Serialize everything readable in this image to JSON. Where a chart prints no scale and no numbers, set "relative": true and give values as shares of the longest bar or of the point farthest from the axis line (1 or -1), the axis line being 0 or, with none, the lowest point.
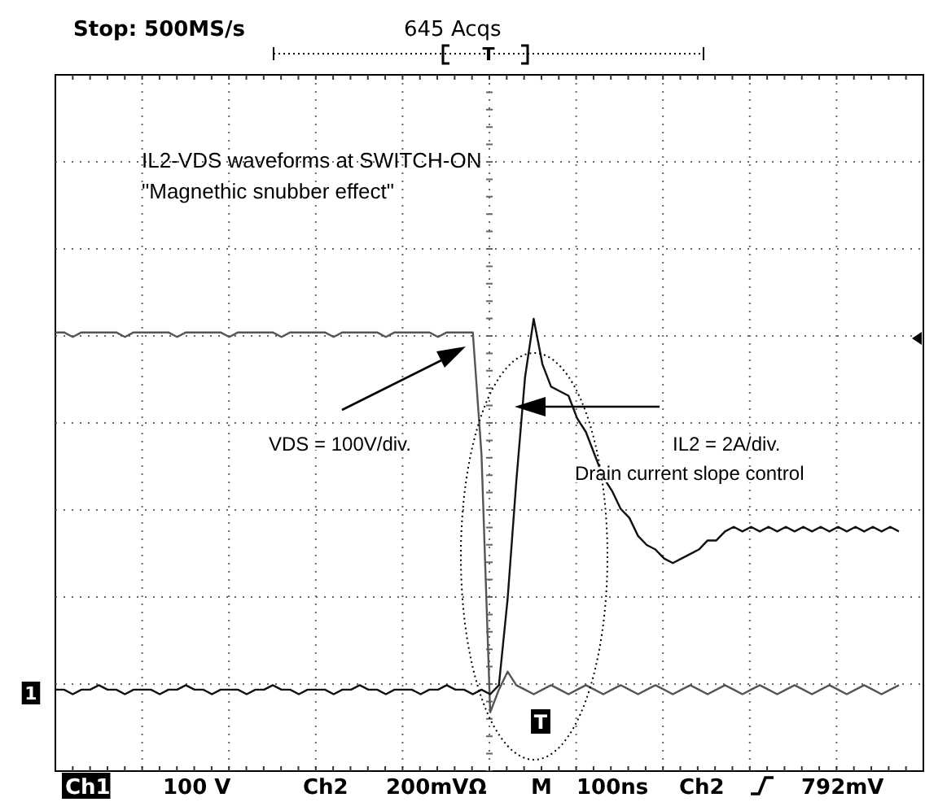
{
  "chart_data": {
    "type": "line",
    "relative": true,
    "grid": true,
    "title": "IL2-VDS waveforms at SWITCH-ON",
    "subtitle": "\"Magnethic snubber effect\"",
    "categories": [
      null,
      null,
      null,
      null,
      null,
      null,
      null,
      null,
      null,
      null,
      null,
      null,
      null,
      null,
      null,
      null,
      null,
      null,
      null,
      null,
      null,
      null,
      null,
      null,
      null,
      null,
      null,
      null,
      null,
      null,
      null,
      null,
      null,
      null,
      null,
      null,
      null,
      null,
      null,
      null,
      null,
      null,
      null,
      null,
      null,
      null,
      null,
      null,
      null,
      null,
      null,
      null,
      null,
      null,
      null,
      null,
      null,
      null,
      null,
      null,
      null,
      null,
      null,
      null,
      null,
      null,
      null,
      null,
      null,
      null,
      null,
      null,
      null,
      null,
      null,
      null,
      null,
      null,
      null,
      null,
      null,
      null,
      null,
      null,
      null,
      null,
      null,
      null,
      null,
      null,
      null,
      null,
      null,
      null,
      null,
      null,
      null,
      null
    ],
    "series": [
      {
        "color": "#555555",
        "values": [
          0.97,
          0.97,
          0.96,
          0.97,
          0.97,
          0.97,
          0.97,
          0.97,
          0.96,
          0.97,
          0.97,
          0.97,
          0.97,
          0.97,
          0.96,
          0.97,
          0.97,
          0.97,
          0.97,
          0.97,
          0.96,
          0.97,
          0.97,
          0.97,
          0.97,
          0.97,
          0.96,
          0.97,
          0.97,
          0.97,
          0.97,
          0.97,
          0.96,
          0.97,
          0.97,
          0.97,
          0.97,
          0.97,
          0.96,
          0.97,
          0.97,
          0.97,
          0.97,
          0.97,
          0.96,
          0.97,
          0.97,
          0.97,
          0.97,
          0.7,
          0.13,
          0.18,
          0.22,
          0.19,
          0.18,
          0.17,
          0.18,
          0.19,
          0.18,
          0.17,
          0.18,
          0.19,
          0.18,
          0.17,
          0.18,
          0.19,
          0.18,
          0.17,
          0.18,
          0.19,
          0.18,
          0.17,
          0.18,
          0.19,
          0.18,
          0.17,
          0.18,
          0.19,
          0.18,
          0.17,
          0.18,
          0.19,
          0.18,
          0.17,
          0.18,
          0.19,
          0.18,
          0.17,
          0.18,
          0.19,
          0.18,
          0.17,
          0.18,
          0.19,
          0.18,
          0.17,
          0.18,
          0.19
        ]
      },
      {
        "color": "#111111",
        "values": [
          0.18,
          0.18,
          0.17,
          0.18,
          0.18,
          0.19,
          0.18,
          0.18,
          0.17,
          0.18,
          0.18,
          0.18,
          0.17,
          0.18,
          0.18,
          0.19,
          0.18,
          0.18,
          0.17,
          0.18,
          0.18,
          0.18,
          0.17,
          0.18,
          0.18,
          0.19,
          0.18,
          0.18,
          0.17,
          0.18,
          0.18,
          0.18,
          0.17,
          0.18,
          0.18,
          0.19,
          0.18,
          0.18,
          0.17,
          0.18,
          0.18,
          0.18,
          0.17,
          0.18,
          0.18,
          0.19,
          0.18,
          0.18,
          0.17,
          0.18,
          0.17,
          0.19,
          0.38,
          0.64,
          0.87,
          1.0,
          0.9,
          0.85,
          0.84,
          0.83,
          0.78,
          0.75,
          0.7,
          0.65,
          0.62,
          0.58,
          0.56,
          0.52,
          0.5,
          0.49,
          0.47,
          0.46,
          0.47,
          0.48,
          0.49,
          0.51,
          0.51,
          0.53,
          0.54,
          0.53,
          0.54,
          0.53,
          0.54,
          0.53,
          0.54,
          0.53,
          0.54,
          0.53,
          0.54,
          0.53,
          0.54,
          0.53,
          0.54,
          0.53,
          0.54,
          0.53,
          0.54,
          0.53
        ]
      }
    ],
    "annotations": [
      "Stop: 500MS/s",
      "645 Acqs",
      "T",
      "VDS = 100V/div.",
      "IL2 = 2A/div.",
      "Drain current slope control",
      "T",
      "1",
      "Ch1",
      "100 V",
      "Ch2",
      "200mVΩ",
      "M",
      "100ns",
      "Ch2",
      "792mV"
    ]
  }
}
